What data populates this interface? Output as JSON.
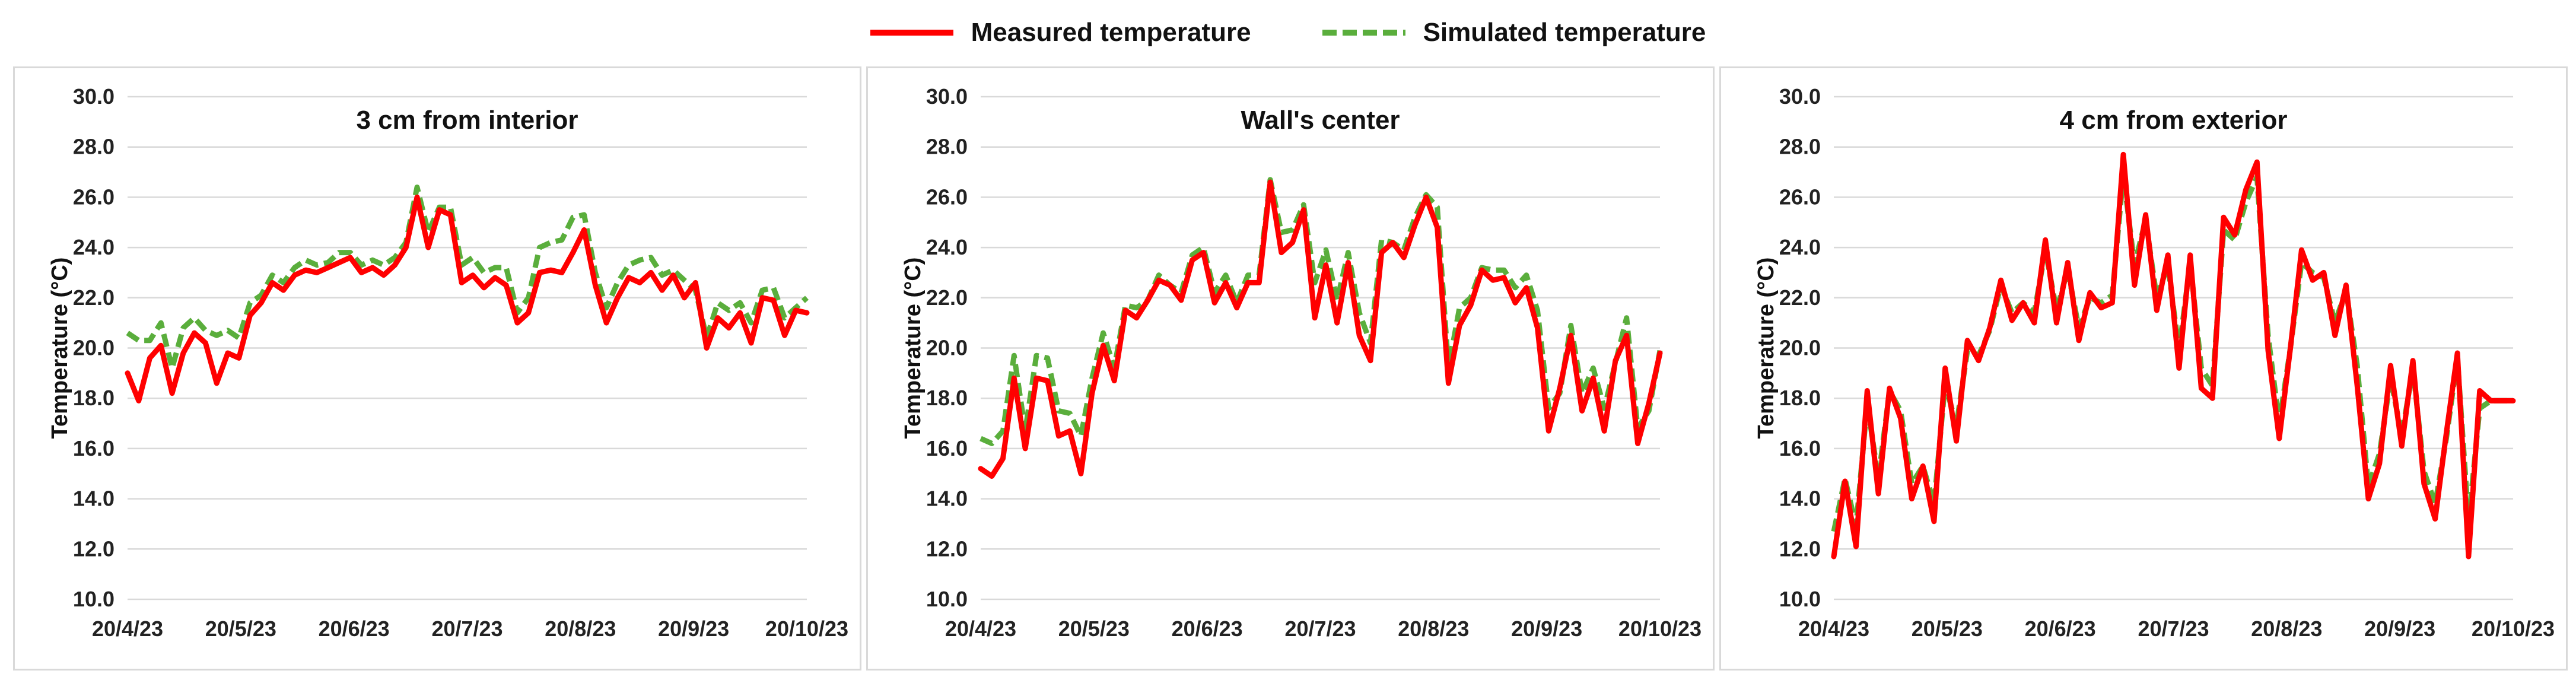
{
  "legend": {
    "measured": "Measured temperature",
    "simulated": "Simulated temperature"
  },
  "colors": {
    "measured": "#ff0000",
    "simulated": "#5aae3c",
    "grid": "#d9d9d9"
  },
  "chart_data": [
    {
      "type": "line",
      "title": "3 cm from interior",
      "ylabel": "Temperature (°C)",
      "ylim": [
        10,
        30
      ],
      "yticks": [
        "10.0",
        "12.0",
        "14.0",
        "16.0",
        "18.0",
        "20.0",
        "22.0",
        "24.0",
        "26.0",
        "28.0",
        "30.0"
      ],
      "xticks": [
        "20/4/23",
        "20/5/23",
        "20/6/23",
        "20/7/23",
        "20/8/23",
        "20/9/23",
        "20/10/23"
      ],
      "x_days": [
        0,
        3,
        6,
        9,
        12,
        15,
        18,
        21,
        24,
        27,
        30,
        33,
        36,
        39,
        42,
        45,
        48,
        51,
        54,
        57,
        60,
        63,
        66,
        69,
        72,
        75,
        78,
        81,
        84,
        87,
        90,
        93,
        96,
        99,
        102,
        105,
        108,
        111,
        114,
        117,
        120,
        123,
        126,
        129,
        132,
        135,
        138,
        141,
        144,
        147,
        150,
        153,
        156,
        159,
        162,
        165,
        168,
        171,
        174,
        177,
        180,
        183
      ],
      "series": [
        {
          "name": "Measured temperature",
          "values": [
            19.0,
            17.9,
            19.6,
            20.1,
            18.2,
            19.8,
            20.6,
            20.2,
            18.6,
            19.8,
            19.6,
            21.3,
            21.8,
            22.6,
            22.3,
            22.9,
            23.1,
            23.0,
            23.2,
            23.4,
            23.6,
            23.0,
            23.2,
            22.9,
            23.3,
            24.0,
            26.0,
            24.0,
            25.5,
            25.3,
            22.6,
            22.9,
            22.4,
            22.8,
            22.5,
            21.0,
            21.4,
            23.0,
            23.1,
            23.0,
            23.8,
            24.7,
            22.5,
            21.0,
            22.0,
            22.8,
            22.6,
            23.0,
            22.3,
            22.9,
            22.0,
            22.6,
            20.0,
            21.2,
            20.8,
            21.4,
            20.2,
            22.0,
            21.9,
            20.5,
            21.5,
            21.4
          ]
        },
        {
          "name": "Simulated temperature",
          "values": [
            20.6,
            20.3,
            20.3,
            21.0,
            19.2,
            20.8,
            21.2,
            20.7,
            20.5,
            20.7,
            20.4,
            21.8,
            22.1,
            22.9,
            22.6,
            23.2,
            23.5,
            23.3,
            23.4,
            23.8,
            23.8,
            23.3,
            23.5,
            23.3,
            23.6,
            24.2,
            26.4,
            24.6,
            25.6,
            25.6,
            23.3,
            23.6,
            23.0,
            23.2,
            23.2,
            21.4,
            22.0,
            24.0,
            24.2,
            24.3,
            25.2,
            25.3,
            23.0,
            21.6,
            22.6,
            23.3,
            23.5,
            23.6,
            22.9,
            23.1,
            22.7,
            22.3,
            20.4,
            21.8,
            21.5,
            21.8,
            21.0,
            22.3,
            22.4,
            21.2,
            21.6,
            22.0
          ]
        }
      ]
    },
    {
      "type": "line",
      "title": "Wall's center",
      "ylabel": "Temperature (°C)",
      "ylim": [
        10,
        30
      ],
      "yticks": [
        "10.0",
        "12.0",
        "14.0",
        "16.0",
        "18.0",
        "20.0",
        "22.0",
        "24.0",
        "26.0",
        "28.0",
        "30.0"
      ],
      "xticks": [
        "20/4/23",
        "20/5/23",
        "20/6/23",
        "20/7/23",
        "20/8/23",
        "20/9/23",
        "20/10/23"
      ],
      "x_days": [
        0,
        3,
        6,
        9,
        12,
        15,
        18,
        21,
        24,
        27,
        30,
        33,
        36,
        39,
        42,
        45,
        48,
        51,
        54,
        57,
        60,
        63,
        66,
        69,
        72,
        75,
        78,
        81,
        84,
        87,
        90,
        93,
        96,
        99,
        102,
        105,
        108,
        111,
        114,
        117,
        120,
        123,
        126,
        129,
        132,
        135,
        138,
        141,
        144,
        147,
        150,
        153,
        156,
        159,
        162,
        165,
        168,
        171,
        174,
        177,
        180,
        183
      ],
      "series": [
        {
          "name": "Measured temperature",
          "values": [
            15.2,
            14.9,
            15.6,
            18.8,
            16.0,
            18.8,
            18.7,
            16.5,
            16.7,
            15.0,
            18.2,
            20.1,
            18.7,
            21.5,
            21.2,
            21.9,
            22.7,
            22.5,
            21.9,
            23.5,
            23.8,
            21.8,
            22.6,
            21.6,
            22.6,
            22.6,
            26.6,
            23.8,
            24.2,
            25.5,
            21.2,
            23.3,
            21.0,
            23.4,
            20.5,
            19.5,
            23.8,
            24.2,
            23.6,
            24.9,
            26.0,
            24.8,
            18.6,
            20.9,
            21.7,
            23.1,
            22.7,
            22.8,
            21.8,
            22.4,
            20.8,
            16.7,
            18.4,
            20.5,
            17.5,
            18.8,
            16.7,
            19.5,
            20.5,
            16.2,
            17.8,
            19.8
          ]
        },
        {
          "name": "Simulated temperature",
          "values": [
            16.4,
            16.2,
            16.7,
            19.7,
            16.7,
            19.7,
            19.6,
            17.5,
            17.4,
            16.5,
            18.8,
            20.6,
            19.2,
            21.7,
            21.6,
            21.9,
            22.9,
            22.5,
            22.2,
            23.7,
            24.0,
            22.2,
            22.9,
            21.8,
            22.9,
            22.9,
            26.7,
            24.6,
            24.7,
            25.7,
            22.6,
            23.9,
            21.9,
            23.8,
            21.4,
            20.2,
            24.3,
            24.2,
            23.9,
            25.2,
            26.1,
            25.6,
            19.2,
            21.6,
            22.0,
            23.2,
            23.1,
            23.1,
            22.4,
            22.9,
            21.5,
            17.6,
            18.2,
            20.9,
            18.2,
            19.2,
            17.6,
            19.4,
            21.2,
            16.8,
            17.5,
            19.9
          ]
        }
      ]
    },
    {
      "type": "line",
      "title": "4 cm from exterior",
      "ylabel": "Temperature (°C)",
      "ylim": [
        10,
        30
      ],
      "yticks": [
        "10.0",
        "12.0",
        "14.0",
        "16.0",
        "18.0",
        "20.0",
        "22.0",
        "24.0",
        "26.0",
        "28.0",
        "30.0"
      ],
      "xticks": [
        "20/4/23",
        "20/5/23",
        "20/6/23",
        "20/7/23",
        "20/8/23",
        "20/9/23",
        "20/10/23"
      ],
      "x_days": [
        0,
        3,
        6,
        9,
        12,
        15,
        18,
        21,
        24,
        27,
        30,
        33,
        36,
        39,
        42,
        45,
        48,
        51,
        54,
        57,
        60,
        63,
        66,
        69,
        72,
        75,
        78,
        81,
        84,
        87,
        90,
        93,
        96,
        99,
        102,
        105,
        108,
        111,
        114,
        117,
        120,
        123,
        126,
        129,
        132,
        135,
        138,
        141,
        144,
        147,
        150,
        153,
        156,
        159,
        162,
        165,
        168,
        171,
        174,
        177,
        180,
        183
      ],
      "series": [
        {
          "name": "Measured temperature",
          "values": [
            11.7,
            14.7,
            12.1,
            18.3,
            14.2,
            18.4,
            17.2,
            14.0,
            15.3,
            13.1,
            19.2,
            16.3,
            20.3,
            19.5,
            20.8,
            22.7,
            21.1,
            21.8,
            21.0,
            24.3,
            21.0,
            23.4,
            20.3,
            22.2,
            21.6,
            21.8,
            27.7,
            22.5,
            25.3,
            21.5,
            23.7,
            19.2,
            23.7,
            18.4,
            18.0,
            25.2,
            24.5,
            26.3,
            27.4,
            19.9,
            16.4,
            20.0,
            23.9,
            22.7,
            23.0,
            20.5,
            22.5,
            18.5,
            14.0,
            15.4,
            19.3,
            16.1,
            19.5,
            14.6,
            13.2,
            16.6,
            19.8,
            11.7,
            18.3,
            17.9,
            17.9,
            17.9
          ]
        },
        {
          "name": "Simulated temperature",
          "values": [
            12.7,
            14.8,
            12.9,
            17.8,
            14.8,
            18.3,
            17.5,
            14.6,
            15.3,
            13.8,
            18.6,
            16.9,
            19.9,
            19.7,
            20.7,
            22.5,
            21.4,
            21.8,
            21.4,
            23.9,
            21.5,
            23.1,
            20.8,
            22.0,
            21.8,
            22.1,
            26.9,
            23.3,
            25.1,
            22.0,
            23.3,
            19.9,
            23.4,
            19.2,
            18.5,
            24.7,
            24.3,
            25.8,
            26.8,
            20.5,
            17.0,
            20.0,
            23.4,
            23.0,
            22.8,
            21.0,
            22.3,
            19.3,
            14.5,
            15.8,
            18.8,
            16.5,
            19.2,
            15.1,
            13.8,
            16.4,
            19.6,
            13.1,
            17.6,
            17.9,
            17.9,
            17.9
          ]
        }
      ]
    }
  ]
}
